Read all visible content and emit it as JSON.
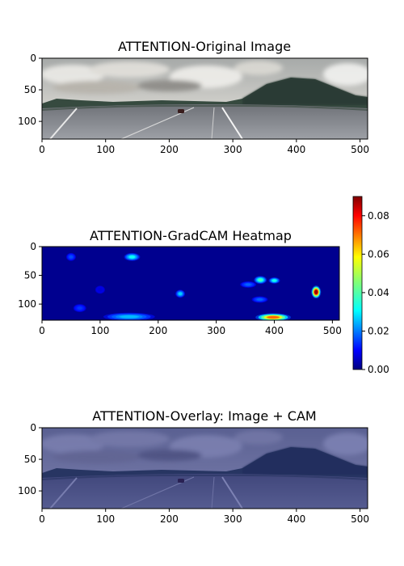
{
  "figure": {
    "panels": [
      {
        "title": "ATTENTION-Original Image",
        "kind": "image"
      },
      {
        "title": "ATTENTION-GradCAM Heatmap",
        "kind": "heatmap"
      },
      {
        "title": "ATTENTION-Overlay: Image + CAM",
        "kind": "overlay"
      }
    ]
  },
  "colors": {
    "sky_top": "#9aa2a8",
    "cloud": "#e6e6e6",
    "tree": "#2a3a32",
    "road": "#8a8e94",
    "heat_low": "#00008f",
    "heat_mid": "#00ffff",
    "heat_high": "#ff0000",
    "overlay_tint": "#2a2f7a"
  },
  "chart_data": [
    {
      "type": "heatmap",
      "title": "ATTENTION-Original Image",
      "xlim": [
        0,
        512
      ],
      "ylim": [
        128,
        0
      ],
      "xticks": [
        0,
        100,
        200,
        300,
        400,
        500
      ],
      "yticks": [
        0,
        50,
        100
      ],
      "xticklabels": [
        "0",
        "100",
        "200",
        "300",
        "400",
        "500"
      ],
      "yticklabels": [
        "0",
        "50",
        "100"
      ]
    },
    {
      "type": "heatmap",
      "title": "ATTENTION-GradCAM Heatmap",
      "xlim": [
        0,
        512
      ],
      "ylim": [
        128,
        0
      ],
      "xticks": [
        0,
        100,
        200,
        300,
        400,
        500
      ],
      "yticks": [
        0,
        50,
        100
      ],
      "xticklabels": [
        "0",
        "100",
        "200",
        "300",
        "400",
        "500"
      ],
      "yticklabels": [
        "0",
        "50",
        "100"
      ],
      "colorbar": {
        "range": [
          0,
          0.09
        ],
        "ticks": [
          0.0,
          0.02,
          0.04,
          0.06,
          0.08
        ],
        "ticklabels": [
          "0.00",
          "0.02",
          "0.04",
          "0.06",
          "0.08"
        ],
        "colormap": "jet"
      },
      "hotspots": [
        {
          "x": 50,
          "y": 18,
          "sx": 6,
          "sy": 5,
          "v": 0.018
        },
        {
          "x": 155,
          "y": 18,
          "sx": 10,
          "sy": 5,
          "v": 0.035
        },
        {
          "x": 100,
          "y": 75,
          "sx": 6,
          "sy": 5,
          "v": 0.008
        },
        {
          "x": 65,
          "y": 107,
          "sx": 8,
          "sy": 5,
          "v": 0.016
        },
        {
          "x": 150,
          "y": 122,
          "sx": 32,
          "sy": 5,
          "v": 0.028
        },
        {
          "x": 238,
          "y": 82,
          "sx": 6,
          "sy": 5,
          "v": 0.03
        },
        {
          "x": 355,
          "y": 66,
          "sx": 10,
          "sy": 4,
          "v": 0.02
        },
        {
          "x": 376,
          "y": 58,
          "sx": 8,
          "sy": 5,
          "v": 0.04
        },
        {
          "x": 400,
          "y": 59,
          "sx": 7,
          "sy": 4,
          "v": 0.036
        },
        {
          "x": 375,
          "y": 92,
          "sx": 10,
          "sy": 4,
          "v": 0.02
        },
        {
          "x": 398,
          "y": 123,
          "sx": 22,
          "sy": 5,
          "v": 0.07
        },
        {
          "x": 472,
          "y": 79,
          "sx": 6,
          "sy": 8,
          "v": 0.088
        }
      ]
    },
    {
      "type": "heatmap",
      "title": "ATTENTION-Overlay: Image + CAM",
      "xlim": [
        0,
        512
      ],
      "ylim": [
        128,
        0
      ],
      "xticks": [
        0,
        100,
        200,
        300,
        400,
        500
      ],
      "yticks": [
        0,
        50,
        100
      ],
      "xticklabels": [
        "0",
        "100",
        "200",
        "300",
        "400",
        "500"
      ],
      "yticklabels": [
        "0",
        "50",
        "100"
      ]
    }
  ]
}
